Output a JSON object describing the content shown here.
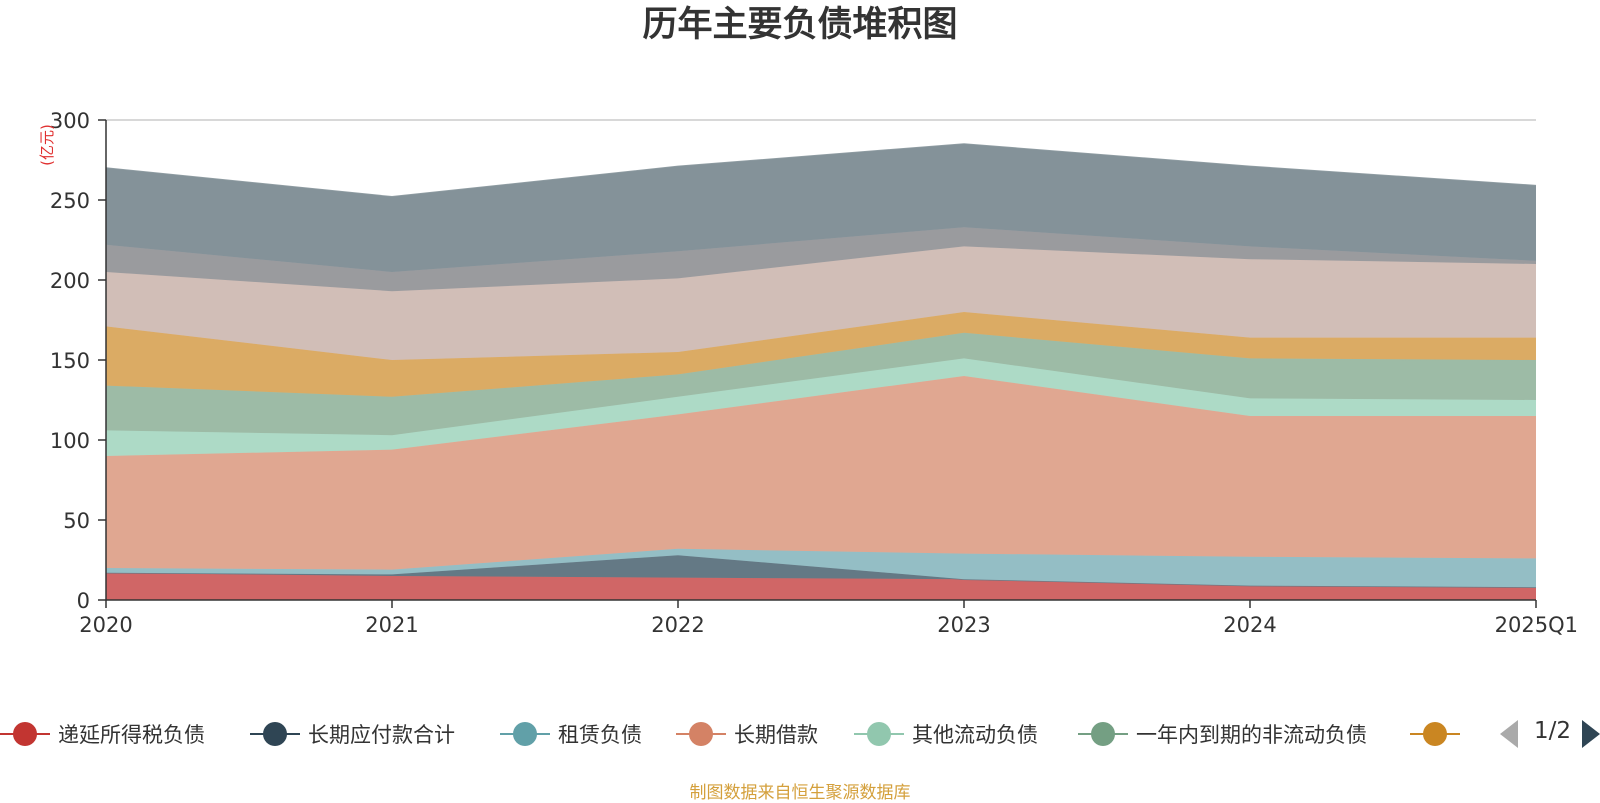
{
  "chart_data": {
    "type": "area",
    "title": "历年主要负债堆积图",
    "ylabel": "(亿元)",
    "xlabel": "",
    "categories": [
      "2020",
      "2021",
      "2022",
      "2023",
      "2024",
      "2025Q1"
    ],
    "ylim": [
      0,
      300
    ],
    "yticks": [
      0,
      50,
      100,
      150,
      200,
      250,
      300
    ],
    "grid": true,
    "stacked": true,
    "legend_position": "bottom",
    "series": [
      {
        "name": "递延所得税负债",
        "color": "#d06666",
        "values": [
          17,
          15,
          14,
          13,
          9,
          8
        ]
      },
      {
        "name": "长期应付款合计",
        "color": "#647985",
        "values": [
          0,
          1,
          14,
          0,
          0,
          0
        ]
      },
      {
        "name": "租赁负债",
        "color": "#94bec5",
        "values": [
          3,
          3,
          4,
          16,
          18,
          18
        ]
      },
      {
        "name": "长期借款",
        "color": "#e0a791",
        "values": [
          70,
          75,
          84,
          111,
          88,
          89
        ]
      },
      {
        "name": "其他流动负债",
        "color": "#addac6",
        "values": [
          16,
          9,
          11,
          11,
          11,
          10
        ]
      },
      {
        "name": "一年内到期的非流动负债",
        "color": "#9dbba6",
        "values": [
          28,
          24,
          14,
          16,
          25,
          25
        ]
      },
      {
        "name": "",
        "color": "#dbab64",
        "values": [
          37,
          23,
          14,
          13,
          13,
          14
        ]
      },
      {
        "name": "",
        "color": "#d1beb7",
        "values": [
          34,
          43,
          46,
          41,
          49,
          46
        ]
      },
      {
        "name": "",
        "color": "#9a9b9e",
        "values": [
          17,
          12,
          17,
          12,
          8,
          2
        ]
      },
      {
        "name": "",
        "color": "#849299",
        "values": [
          48,
          47,
          53,
          52,
          50,
          47
        ]
      }
    ]
  },
  "legend": {
    "visible_count": 7,
    "pager_text": "1/2"
  },
  "source_note": "制图数据来自恒生聚源数据库",
  "colors": {
    "axis": "#333333",
    "grid": "#cccccc",
    "unit_label": "#e03030",
    "legend_markers": [
      "#c23531",
      "#2f4554",
      "#61a0a8",
      "#d48265",
      "#91c7ae",
      "#749f83",
      "#ca8622"
    ]
  }
}
